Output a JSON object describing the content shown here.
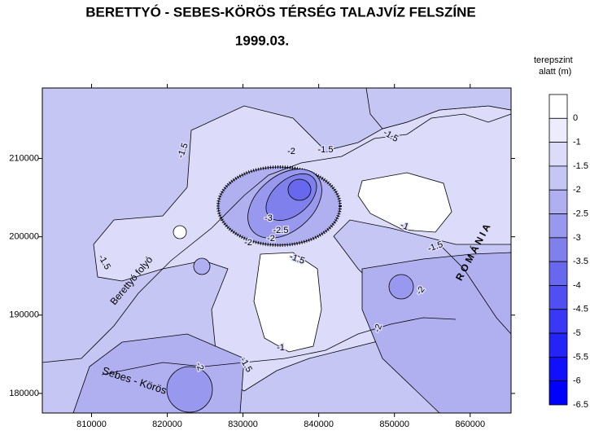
{
  "header": {
    "title": "BERETTYÓ - SEBES-KÖRÖS TÉRSÉG TALAJVÍZ FELSZÍNE",
    "subtitle": "1999.03."
  },
  "map": {
    "xlim": [
      803500,
      865400
    ],
    "ylim": [
      177500,
      219000
    ],
    "xticks": [
      810000,
      820000,
      830000,
      840000,
      850000,
      860000
    ],
    "yticks": [
      180000,
      190000,
      200000,
      210000
    ],
    "contour_labels": [
      "-1.5",
      "-2",
      "-1.5",
      "-1.5",
      "-1",
      "-1.5",
      "-3",
      "-2.5",
      "-2",
      "-2",
      "-1.5",
      "-1.5",
      "-2",
      "-2",
      "-1.5",
      "-1",
      "-2"
    ],
    "place_labels": [
      "Berettyó folyó",
      "Sebes - Körös",
      "R O M Á N I A"
    ]
  },
  "legend": {
    "title": [
      "terepszint",
      "alatt (m)"
    ],
    "levels": [
      0,
      -1,
      -1.5,
      -2,
      -2.5,
      -3,
      -3.5,
      -4,
      -4.5,
      -5,
      -5.5,
      -6,
      -6.5
    ],
    "colors": [
      "#ffffff",
      "#ececfd",
      "#dcdcfa",
      "#c6c6f4",
      "#b0b0f1",
      "#9898ee",
      "#8080ec",
      "#6868ee",
      "#5050f2",
      "#3838f5",
      "#2424f9",
      "#1010fc",
      "#0000ff"
    ]
  }
}
